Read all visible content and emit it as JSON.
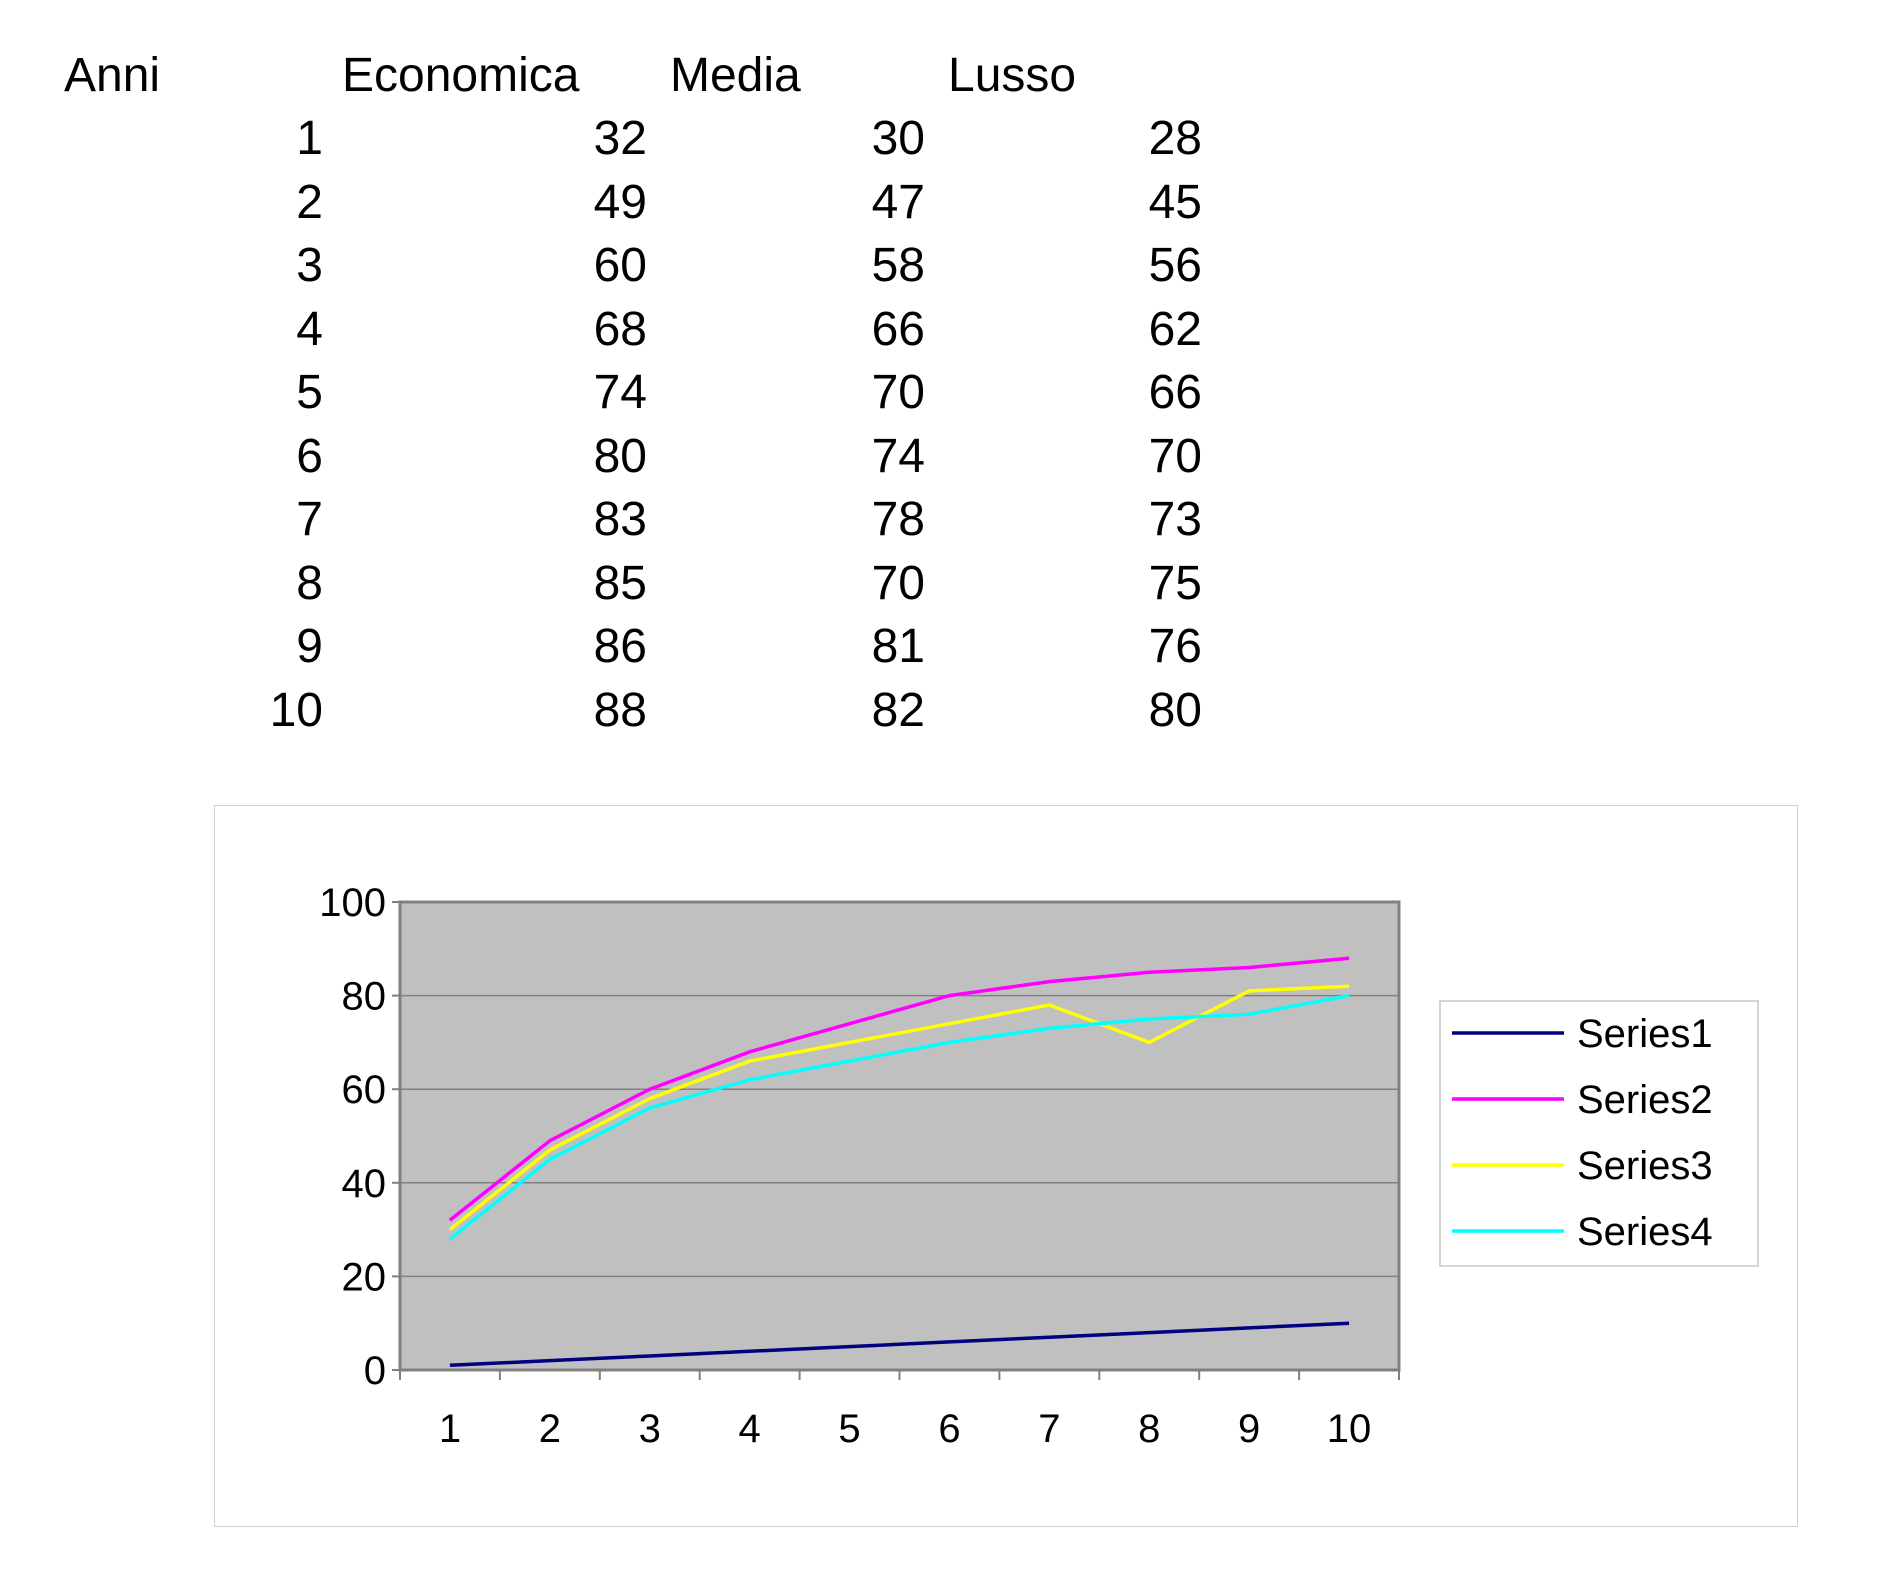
{
  "table": {
    "headers": [
      "Anni",
      "Economica",
      "Media",
      "Lusso"
    ],
    "rows": [
      [
        1,
        32,
        30,
        28
      ],
      [
        2,
        49,
        47,
        45
      ],
      [
        3,
        60,
        58,
        56
      ],
      [
        4,
        68,
        66,
        62
      ],
      [
        5,
        74,
        70,
        66
      ],
      [
        6,
        80,
        74,
        70
      ],
      [
        7,
        83,
        78,
        73
      ],
      [
        8,
        85,
        70,
        75
      ],
      [
        9,
        86,
        81,
        76
      ],
      [
        10,
        88,
        82,
        80
      ]
    ]
  },
  "chart_data": {
    "type": "line",
    "title": "",
    "xlabel": "",
    "ylabel": "",
    "categories": [
      "1",
      "2",
      "3",
      "4",
      "5",
      "6",
      "7",
      "8",
      "9",
      "10"
    ],
    "series": [
      {
        "name": "Series1",
        "color": "#000080",
        "values": [
          1,
          2,
          3,
          4,
          5,
          6,
          7,
          8,
          9,
          10
        ]
      },
      {
        "name": "Series2",
        "color": "#ff00ff",
        "values": [
          32,
          49,
          60,
          68,
          74,
          80,
          83,
          85,
          86,
          88
        ]
      },
      {
        "name": "Series3",
        "color": "#ffff00",
        "values": [
          30,
          47,
          58,
          66,
          70,
          74,
          78,
          70,
          81,
          82
        ]
      },
      {
        "name": "Series4",
        "color": "#00ffff",
        "values": [
          28,
          45,
          56,
          62,
          66,
          70,
          73,
          75,
          76,
          80
        ]
      }
    ],
    "ylim": [
      0,
      100
    ],
    "yticks": [
      0,
      20,
      40,
      60,
      80,
      100
    ],
    "grid": true,
    "plot_background": "#c0c0c0",
    "legend_position": "right"
  }
}
